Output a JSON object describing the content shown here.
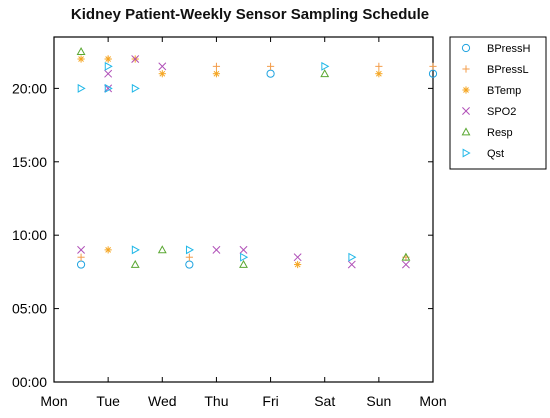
{
  "chart_data": {
    "type": "scatter",
    "title": "Kidney Patient-Weekly Sensor Sampling Schedule",
    "xlabel": "",
    "ylabel": "",
    "x_ticks": [
      "Mon",
      "Tue",
      "Wed",
      "Thu",
      "Fri",
      "Sat",
      "Sun",
      "Mon"
    ],
    "y_ticks": [
      "00:00",
      "05:00",
      "10:00",
      "15:00",
      "20:00"
    ],
    "x_range": [
      0,
      7
    ],
    "y_range_hours": [
      0,
      23.5
    ],
    "grid": false,
    "legend_position": "right, outside plot",
    "series": [
      {
        "name": "BPressH",
        "marker": "circle",
        "color": "#1fa3e0",
        "points": [
          {
            "day": 0.5,
            "hour": 8.0
          },
          {
            "day": 2.5,
            "hour": 8.0
          },
          {
            "day": 4.0,
            "hour": 21.0
          },
          {
            "day": 7.0,
            "hour": 21.0
          }
        ]
      },
      {
        "name": "BPressL",
        "marker": "plus",
        "color": "#f39c4a",
        "points": [
          {
            "day": 0.5,
            "hour": 8.5
          },
          {
            "day": 1.0,
            "hour": 22.0
          },
          {
            "day": 2.5,
            "hour": 8.5
          },
          {
            "day": 3.0,
            "hour": 21.5
          },
          {
            "day": 4.0,
            "hour": 21.5
          },
          {
            "day": 6.0,
            "hour": 21.5
          },
          {
            "day": 6.5,
            "hour": 8.5
          },
          {
            "day": 7.0,
            "hour": 21.5
          }
        ]
      },
      {
        "name": "BTemp",
        "marker": "asterisk",
        "color": "#f5a623",
        "points": [
          {
            "day": 0.5,
            "hour": 22.0
          },
          {
            "day": 1.0,
            "hour": 9.0
          },
          {
            "day": 1.0,
            "hour": 22.0
          },
          {
            "day": 1.5,
            "hour": 22.0
          },
          {
            "day": 2.0,
            "hour": 21.0
          },
          {
            "day": 3.0,
            "hour": 21.0
          },
          {
            "day": 4.5,
            "hour": 8.0
          },
          {
            "day": 6.0,
            "hour": 21.0
          }
        ]
      },
      {
        "name": "SPO2",
        "marker": "x",
        "color": "#b050b8",
        "points": [
          {
            "day": 0.5,
            "hour": 9.0
          },
          {
            "day": 1.0,
            "hour": 21.0
          },
          {
            "day": 1.0,
            "hour": 20.0
          },
          {
            "day": 1.5,
            "hour": 22.0
          },
          {
            "day": 2.0,
            "hour": 21.5
          },
          {
            "day": 3.0,
            "hour": 9.0
          },
          {
            "day": 3.5,
            "hour": 9.0
          },
          {
            "day": 4.5,
            "hour": 8.5
          },
          {
            "day": 5.5,
            "hour": 8.0
          },
          {
            "day": 6.5,
            "hour": 8.0
          }
        ]
      },
      {
        "name": "Resp",
        "marker": "triangle-up",
        "color": "#5aa832",
        "points": [
          {
            "day": 0.5,
            "hour": 22.5
          },
          {
            "day": 1.5,
            "hour": 8.0
          },
          {
            "day": 2.0,
            "hour": 9.0
          },
          {
            "day": 3.5,
            "hour": 8.0
          },
          {
            "day": 5.0,
            "hour": 21.0
          },
          {
            "day": 6.5,
            "hour": 8.5
          }
        ]
      },
      {
        "name": "Qst",
        "marker": "triangle-right",
        "color": "#22b8e8",
        "points": [
          {
            "day": 0.5,
            "hour": 20.0
          },
          {
            "day": 1.0,
            "hour": 20.0
          },
          {
            "day": 1.0,
            "hour": 21.5
          },
          {
            "day": 1.5,
            "hour": 20.0
          },
          {
            "day": 1.5,
            "hour": 9.0
          },
          {
            "day": 2.5,
            "hour": 9.0
          },
          {
            "day": 3.5,
            "hour": 8.5
          },
          {
            "day": 5.0,
            "hour": 21.5
          },
          {
            "day": 5.5,
            "hour": 8.5
          }
        ]
      }
    ]
  }
}
